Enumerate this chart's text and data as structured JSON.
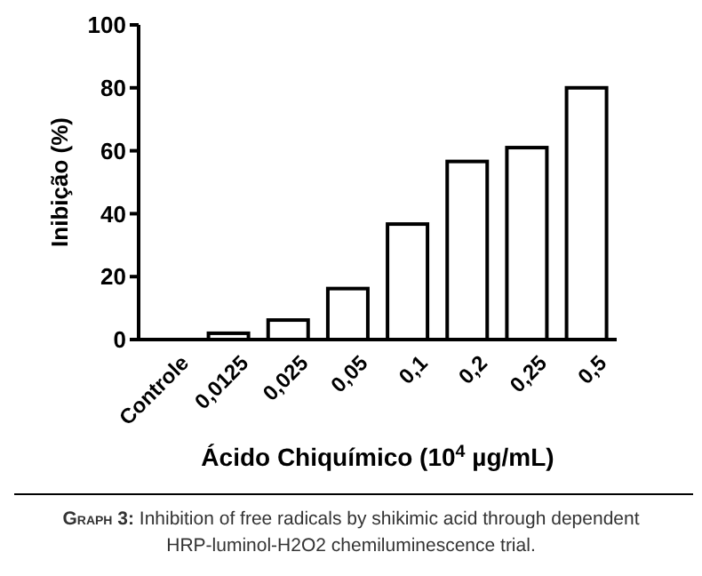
{
  "chart_data": {
    "type": "bar",
    "ylabel": "Inibição (%)",
    "xlabel": "Ácido Chiquímico (10$^{4}$ µg/mL)",
    "categories": [
      "Controle",
      "0,0125",
      "0,025",
      "0,05",
      "0,1",
      "0,2",
      "0,25",
      "0,5"
    ],
    "values": [
      0,
      2,
      6.2,
      16.2,
      36.7,
      56.6,
      61,
      80
    ],
    "color": "#ffffff",
    "ylim": [
      0,
      100
    ],
    "yticks": [
      0,
      20,
      40,
      60,
      80,
      100
    ],
    "grid": false,
    "annotations": [
      "Graph 3: Inhibition of free radicals by shikimic acid through dependent",
      "HRP-luminol-H2O2 chemiluminescence trial."
    ]
  }
}
